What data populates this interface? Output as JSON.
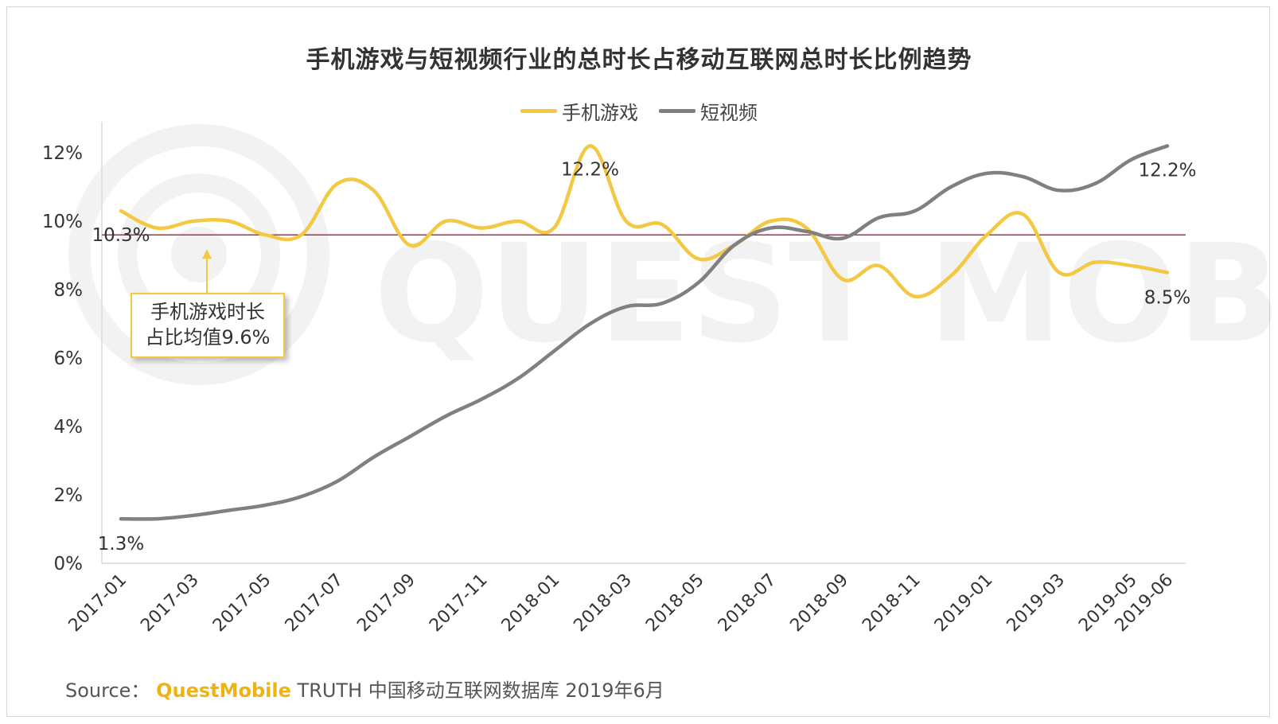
{
  "chart_data": {
    "type": "line",
    "title": "手机游戏与短视频行业的总时长占移动互联网总时长比例趋势",
    "x": [
      "2017-01",
      "2017-02",
      "2017-03",
      "2017-04",
      "2017-05",
      "2017-06",
      "2017-07",
      "2017-08",
      "2017-09",
      "2017-10",
      "2017-11",
      "2017-12",
      "2018-01",
      "2018-02",
      "2018-03",
      "2018-04",
      "2018-05",
      "2018-06",
      "2018-07",
      "2018-08",
      "2018-09",
      "2018-10",
      "2018-11",
      "2018-12",
      "2019-01",
      "2019-02",
      "2019-03",
      "2019-04",
      "2019-05",
      "2019-06"
    ],
    "x_tick_labels": [
      "2017-01",
      "2017-03",
      "2017-05",
      "2017-07",
      "2017-09",
      "2017-11",
      "2018-01",
      "2018-03",
      "2018-05",
      "2018-07",
      "2018-09",
      "2018-11",
      "2019-01",
      "2019-03",
      "2019-05",
      "2019-06"
    ],
    "y_ticks": [
      "0%",
      "2%",
      "4%",
      "6%",
      "8%",
      "10%",
      "12%"
    ],
    "ylim": [
      0,
      13
    ],
    "series": [
      {
        "name": "手机游戏",
        "color": "#f3c843",
        "values": [
          10.3,
          9.8,
          10.0,
          10.0,
          9.6,
          9.6,
          11.1,
          10.9,
          9.3,
          10.0,
          9.8,
          10.0,
          9.8,
          12.2,
          10.0,
          9.9,
          8.9,
          9.3,
          10.0,
          9.8,
          8.3,
          8.7,
          7.8,
          8.4,
          9.6,
          10.2,
          8.5,
          8.8,
          8.7,
          8.5
        ]
      },
      {
        "name": "短视频",
        "color": "#808080",
        "values": [
          1.3,
          1.3,
          1.4,
          1.55,
          1.7,
          1.95,
          2.4,
          3.1,
          3.7,
          4.3,
          4.8,
          5.4,
          6.2,
          7.0,
          7.5,
          7.6,
          8.2,
          9.3,
          9.8,
          9.7,
          9.5,
          10.1,
          10.3,
          11.0,
          11.4,
          11.3,
          10.9,
          11.1,
          11.8,
          12.2
        ]
      }
    ],
    "average_line": {
      "value": 9.6,
      "color": "#a8304a"
    },
    "data_labels": [
      {
        "series": 0,
        "index": 0,
        "text": "10.3%"
      },
      {
        "series": 0,
        "index": 13,
        "text": "12.2%"
      },
      {
        "series": 0,
        "index": 29,
        "text": "8.5%"
      },
      {
        "series": 1,
        "index": 0,
        "text": "1.3%"
      },
      {
        "series": 1,
        "index": 29,
        "text": "12.2%"
      }
    ],
    "annotation": {
      "line1": "手机游戏时长",
      "line2": "占比均值9.6%"
    },
    "legend_position": "top-center",
    "grid": false,
    "watermark": "QUEST MOBILE"
  },
  "footer": {
    "source_prefix": "Source：",
    "brand": "QuestMobile",
    "rest": "TRUTH 中国移动互联网数据库 2019年6月"
  }
}
